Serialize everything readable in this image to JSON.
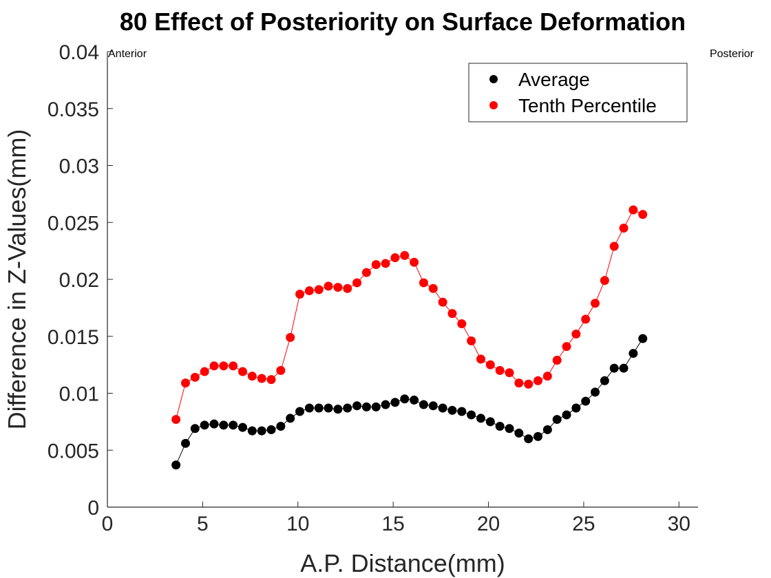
{
  "chart_data": {
    "type": "line",
    "title": "80  Effect of Posteriority on Surface Deformation",
    "xlabel": "A.P. Distance(mm)",
    "ylabel": "Difference in Z-Values(mm)",
    "xlim": [
      0,
      31
    ],
    "ylim": [
      0,
      0.04
    ],
    "xticks": [
      0,
      5,
      10,
      15,
      20,
      25,
      30
    ],
    "xtick_labels": [
      "0",
      "5",
      "10",
      "15",
      "20",
      "25",
      "30"
    ],
    "yticks": [
      0,
      0.005,
      0.01,
      0.015,
      0.02,
      0.025,
      0.03,
      0.035,
      0.04
    ],
    "ytick_labels": [
      "0",
      "0.005",
      "0.01",
      "0.015",
      "0.02",
      "0.025",
      "0.03",
      "0.035",
      "0.04"
    ],
    "grid": false,
    "legend_position": "top-right",
    "annotations": {
      "left": "Anterior",
      "right": "Posterior"
    },
    "x": [
      3.6,
      4.1,
      4.6,
      5.1,
      5.6,
      6.1,
      6.6,
      7.1,
      7.6,
      8.1,
      8.6,
      9.1,
      9.6,
      10.1,
      10.6,
      11.1,
      11.6,
      12.1,
      12.6,
      13.1,
      13.6,
      14.1,
      14.6,
      15.1,
      15.6,
      16.1,
      16.6,
      17.1,
      17.6,
      18.1,
      18.6,
      19.1,
      19.6,
      20.1,
      20.6,
      21.1,
      21.6,
      22.1,
      22.6,
      23.1,
      23.6,
      24.1,
      24.6,
      25.1,
      25.6,
      26.1,
      26.6,
      27.1,
      27.6,
      28.1
    ],
    "series": [
      {
        "name": "Average",
        "color": "#000000",
        "values": [
          0.0037,
          0.0056,
          0.0069,
          0.0072,
          0.0073,
          0.0072,
          0.0072,
          0.007,
          0.0067,
          0.0067,
          0.0068,
          0.0071,
          0.0078,
          0.0084,
          0.0087,
          0.0087,
          0.0087,
          0.0086,
          0.0087,
          0.0089,
          0.0088,
          0.0088,
          0.009,
          0.0092,
          0.0095,
          0.0094,
          0.009,
          0.0089,
          0.0087,
          0.0085,
          0.0084,
          0.0081,
          0.0078,
          0.0075,
          0.0071,
          0.0069,
          0.0065,
          0.006,
          0.0062,
          0.0068,
          0.0077,
          0.0081,
          0.0087,
          0.0093,
          0.0101,
          0.0111,
          0.0122,
          0.0122,
          0.0135,
          0.0148
        ]
      },
      {
        "name": "Tenth Percentile",
        "color": "#ff0000",
        "values": [
          0.0077,
          0.0109,
          0.0114,
          0.0119,
          0.0124,
          0.0124,
          0.0124,
          0.0119,
          0.0115,
          0.0113,
          0.0112,
          0.012,
          0.0149,
          0.0187,
          0.019,
          0.0191,
          0.0194,
          0.0193,
          0.0192,
          0.0197,
          0.0206,
          0.0213,
          0.0214,
          0.0219,
          0.0221,
          0.0215,
          0.0197,
          0.0192,
          0.018,
          0.017,
          0.0161,
          0.0146,
          0.013,
          0.0125,
          0.012,
          0.0118,
          0.0109,
          0.0108,
          0.0111,
          0.0115,
          0.0129,
          0.0141,
          0.0152,
          0.0165,
          0.0179,
          0.0199,
          0.0229,
          0.0245,
          0.0261,
          0.0257
        ]
      }
    ]
  }
}
